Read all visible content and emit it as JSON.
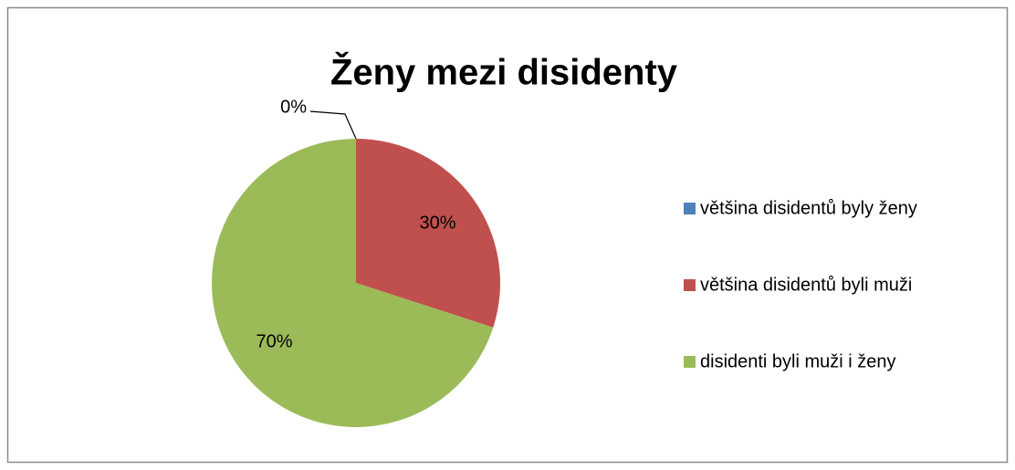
{
  "chart_data": {
    "type": "pie",
    "title": "Ženy mezi disidenty",
    "categories": [
      "většina disidentů byly ženy",
      "většina disidentů byli muži",
      "disidenti byli muži i ženy"
    ],
    "values": [
      0,
      30,
      70
    ],
    "value_labels": [
      "0%",
      "30%",
      "70%"
    ],
    "colors": [
      "#4f81bd",
      "#c0504d",
      "#9bbb59"
    ],
    "legend": "right"
  }
}
